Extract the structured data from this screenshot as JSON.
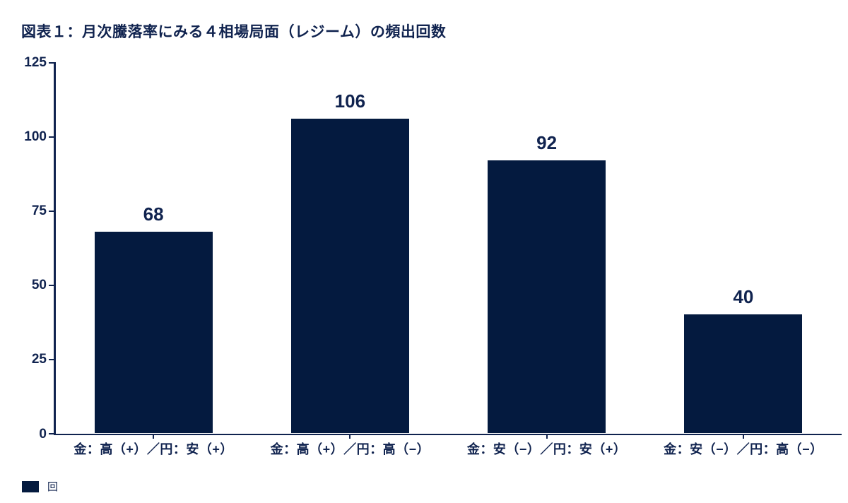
{
  "title": "図表１：月次騰落率にみる４相場局面（レジーム）の頻出回数",
  "legend": {
    "label": "回"
  },
  "colors": {
    "bar": "#041a3f",
    "text": "#10234f",
    "axis": "#10234f",
    "background": "#ffffff"
  },
  "chart_data": {
    "type": "bar",
    "title": "図表１：月次騰落率にみる４相場局面（レジーム）の頻出回数",
    "categories": [
      "金：高（+）／円：安（+）",
      "金：高（+）／円：高（−）",
      "金：安（−）／円：安（+）",
      "金：安（−）／円：高（−）"
    ],
    "values": [
      68,
      106,
      92,
      40
    ],
    "value_labels": [
      "68",
      "106",
      "92",
      "40"
    ],
    "xlabel": "",
    "ylabel": "",
    "ylim": [
      0,
      125
    ],
    "yticks": [
      "0",
      "25",
      "50",
      "75",
      "100",
      "125"
    ],
    "legend_entries": [
      "回"
    ],
    "legend_position": "bottom-left",
    "grid": false,
    "bar_color": "#041a3f"
  }
}
